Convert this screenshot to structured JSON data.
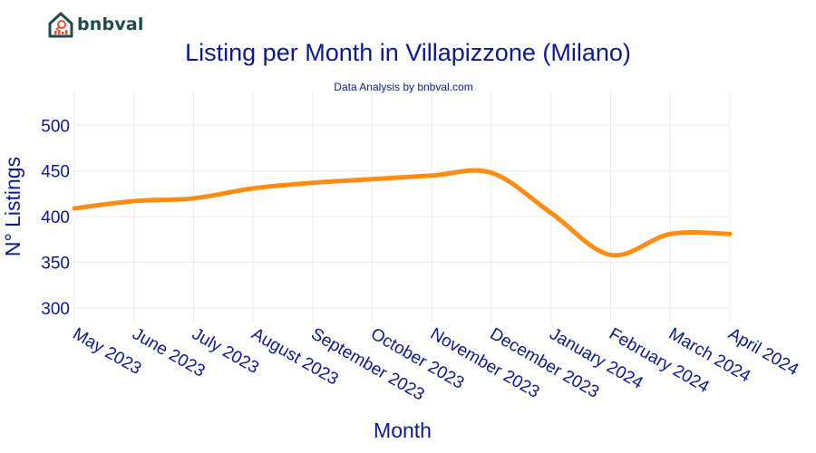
{
  "brand": {
    "logo_text": "bnbval"
  },
  "chart_data": {
    "type": "line",
    "title": "Listing per Month in Villapizzone (Milano)",
    "subtitle": "Data Analysis by bnbval.com",
    "xlabel": "Month",
    "ylabel": "N° Listings",
    "categories": [
      "May 2023",
      "June 2023",
      "July 2023",
      "August 2023",
      "September 2023",
      "October 2023",
      "November 2023",
      "December 2023",
      "January 2024",
      "February 2024",
      "March 2024",
      "April 2024"
    ],
    "series": [
      {
        "values": [
          409,
          417,
          420,
          431,
          437,
          441,
          445,
          448,
          404,
          358,
          381,
          381
        ],
        "color": "#ff8c12"
      }
    ],
    "yticks": [
      300,
      350,
      400,
      450,
      500
    ],
    "ylim": [
      283,
      538
    ],
    "grid": true
  }
}
